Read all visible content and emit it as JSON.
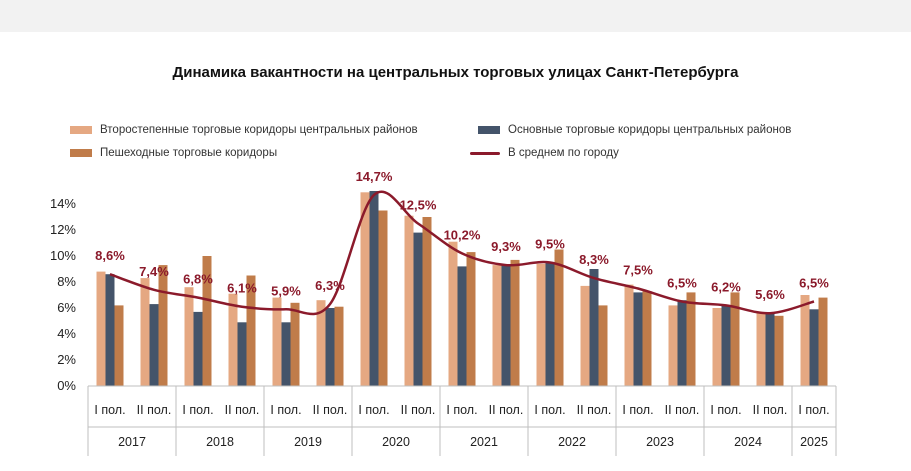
{
  "chart_data": {
    "type": "bar",
    "title": "Динамика вакантности на центральных торговых улицах Санкт-Петербурга",
    "xlabel": "",
    "ylabel": "",
    "ylim": [
      0,
      16
    ],
    "yticks": [
      "0%",
      "2%",
      "4%",
      "6%",
      "8%",
      "10%",
      "12%",
      "14%"
    ],
    "ytick_values": [
      0,
      2,
      4,
      6,
      8,
      10,
      12,
      14
    ],
    "legend_position": "top",
    "categories": [
      "I пол.",
      "II пол.",
      "I пол.",
      "II пол.",
      "I пол.",
      "II пол.",
      "I пол.",
      "II пол.",
      "I пол.",
      "II пол.",
      "I пол.",
      "II пол.",
      "I пол.",
      "II пол.",
      "I пол.",
      "II пол.",
      "I пол."
    ],
    "years": [
      {
        "label": "2017",
        "count": 2
      },
      {
        "label": "2018",
        "count": 2
      },
      {
        "label": "2019",
        "count": 2
      },
      {
        "label": "2020",
        "count": 2
      },
      {
        "label": "2021",
        "count": 2
      },
      {
        "label": "2022",
        "count": 2
      },
      {
        "label": "2023",
        "count": 2
      },
      {
        "label": "2024",
        "count": 2
      },
      {
        "label": "2025",
        "count": 1
      }
    ],
    "series": [
      {
        "name": "Второстепенные торговые коридоры центральных районов",
        "kind": "bar",
        "color": "#e5a882",
        "values": [
          8.8,
          8.3,
          7.6,
          7.1,
          6.8,
          6.6,
          14.9,
          13.1,
          11.1,
          9.3,
          9.4,
          7.7,
          7.8,
          6.2,
          6.0,
          5.6,
          7.0
        ]
      },
      {
        "name": "Основные торговые коридоры центральных районов",
        "kind": "bar",
        "color": "#44546a",
        "values": [
          8.6,
          6.3,
          5.7,
          4.9,
          4.9,
          6.0,
          15.0,
          11.8,
          9.2,
          9.3,
          9.5,
          9.0,
          7.2,
          6.6,
          6.2,
          5.6,
          5.9
        ]
      },
      {
        "name": "Пешеходные торговые коридоры",
        "kind": "bar",
        "color": "#c07c4a",
        "values": [
          6.2,
          9.3,
          10.0,
          8.5,
          6.4,
          6.1,
          13.5,
          13.0,
          10.3,
          9.7,
          10.5,
          6.2,
          7.3,
          7.2,
          7.2,
          5.4,
          6.8
        ]
      },
      {
        "name": "В среднем по городу",
        "kind": "line",
        "color": "#8b1a2b",
        "values": [
          8.6,
          7.4,
          6.8,
          6.1,
          5.9,
          6.3,
          14.7,
          12.5,
          10.2,
          9.3,
          9.5,
          8.3,
          7.5,
          6.5,
          6.2,
          5.6,
          6.5
        ],
        "labels": [
          "8,6%",
          "7,4%",
          "6,8%",
          "6,1%",
          "5,9%",
          "6,3%",
          "14,7%",
          "12,5%",
          "10,2%",
          "9,3%",
          "9,5%",
          "8,3%",
          "7,5%",
          "6,5%",
          "6,2%",
          "5,6%",
          "6,5%"
        ]
      }
    ]
  }
}
